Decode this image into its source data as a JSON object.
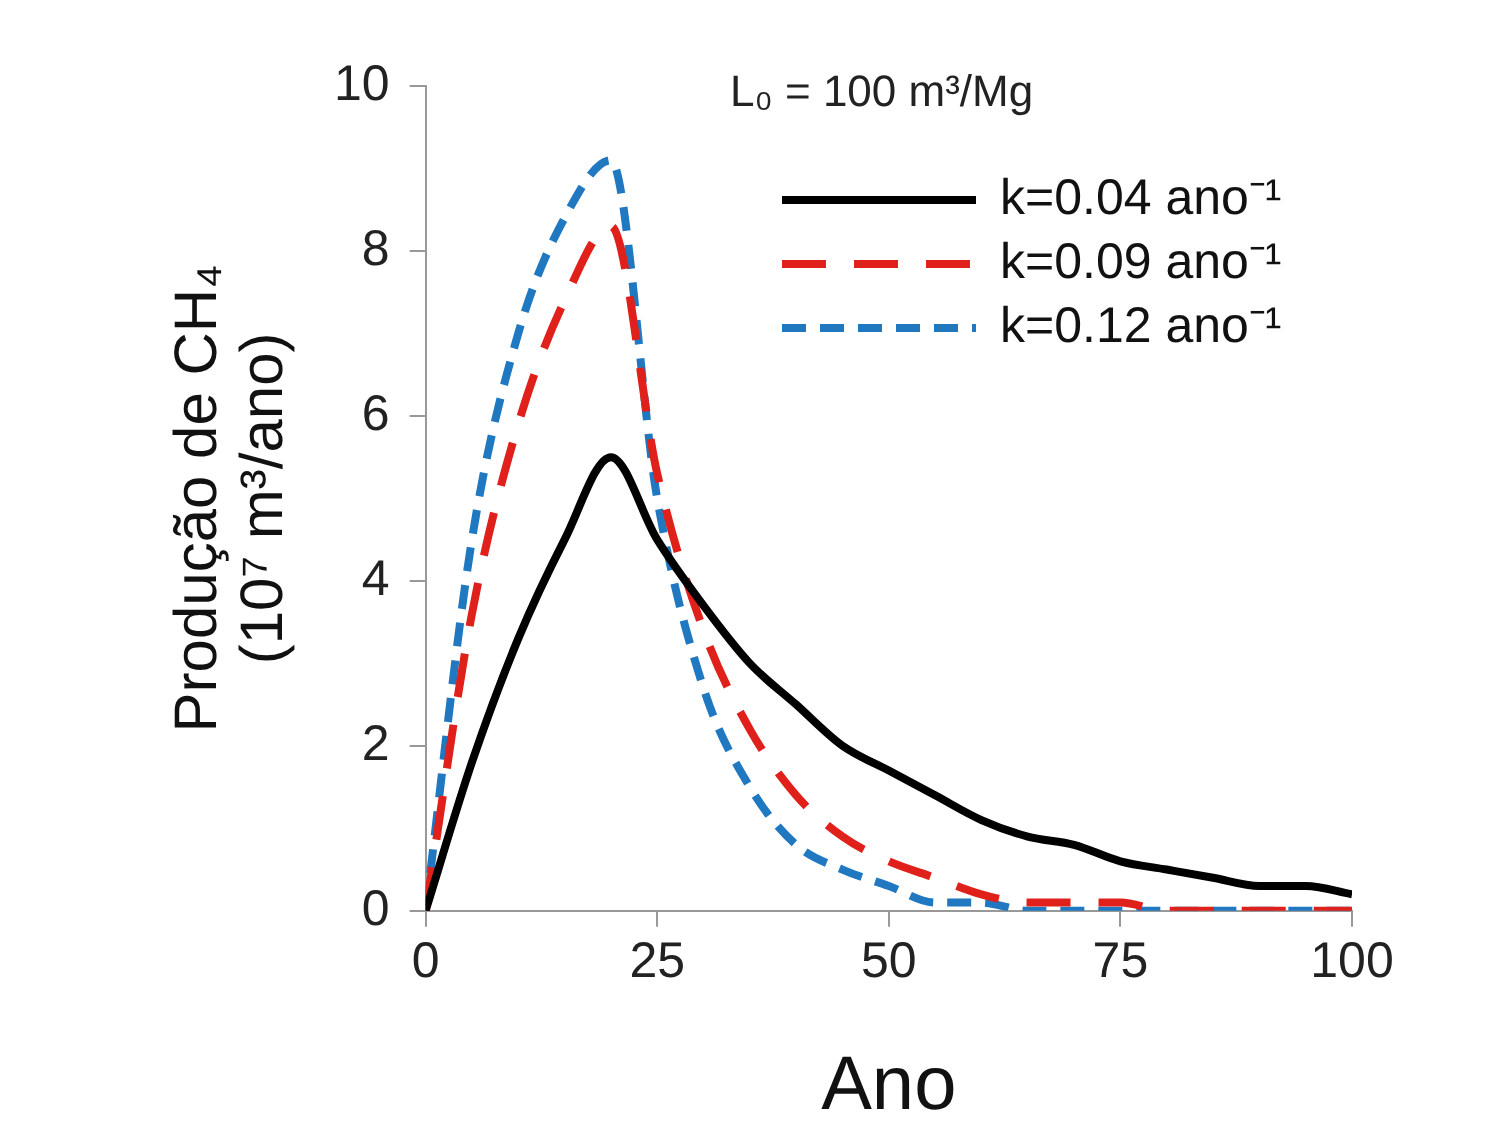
{
  "chart_data": {
    "type": "line",
    "xlabel": "Ano",
    "ylabel": "Produção de CH₄\n(10⁷ m³/ano)",
    "legend_title": "L₀ = 100 m³/Mg",
    "x": [
      0,
      5,
      10,
      15,
      20,
      25,
      30,
      35,
      40,
      45,
      50,
      55,
      60,
      65,
      70,
      75,
      80,
      85,
      90,
      95,
      100
    ],
    "series": [
      {
        "name": "k=0.04 ano⁻¹",
        "color": "#000000",
        "line_style": "solid",
        "values": [
          0,
          1.8,
          3.3,
          4.5,
          5.5,
          4.5,
          3.7,
          3.0,
          2.5,
          2.0,
          1.7,
          1.4,
          1.1,
          0.9,
          0.8,
          0.6,
          0.5,
          0.4,
          0.3,
          0.3,
          0.2
        ]
      },
      {
        "name": "k=0.09 ano⁻¹",
        "color": "#e0201b",
        "line_style": "dashed",
        "values": [
          0,
          3.6,
          5.9,
          7.4,
          8.3,
          5.3,
          3.4,
          2.2,
          1.4,
          0.9,
          0.6,
          0.4,
          0.2,
          0.1,
          0.1,
          0.1,
          0,
          0,
          0,
          0,
          0
        ]
      },
      {
        "name": "k=0.12 ano⁻¹",
        "color": "#1f78c0",
        "line_style": "dashed",
        "values": [
          0,
          4.5,
          7.0,
          8.4,
          9.1,
          5.0,
          2.7,
          1.5,
          0.8,
          0.5,
          0.3,
          0.1,
          0.1,
          0,
          0,
          0,
          0,
          0,
          0,
          0,
          0
        ]
      }
    ],
    "xlim": [
      0,
      100
    ],
    "xticks": [
      0,
      25,
      50,
      75,
      100
    ],
    "ylim": [
      0,
      10
    ],
    "yticks": [
      0,
      2,
      4,
      6,
      8,
      10
    ],
    "grid": false,
    "legend": "top right",
    "marker": "none"
  }
}
